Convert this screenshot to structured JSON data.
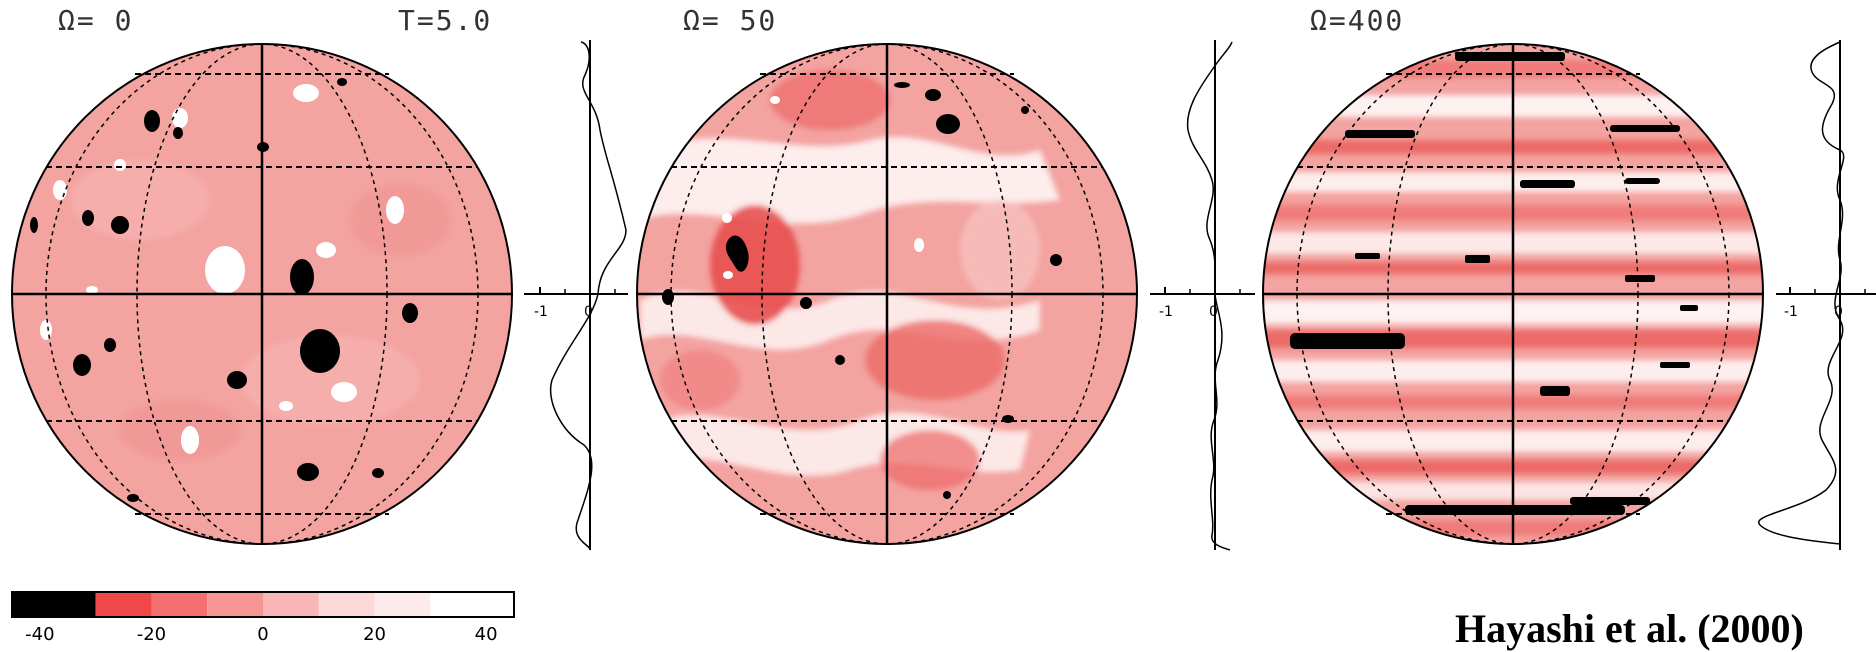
{
  "panels": [
    {
      "omega_label": "Ω=  0",
      "time_label": "T=5.0",
      "profile_min": "-1",
      "profile_zero": "0"
    },
    {
      "omega_label": "Ω= 50",
      "time_label": "",
      "profile_min": "-1",
      "profile_zero": "0"
    },
    {
      "omega_label": "Ω=400",
      "time_label": "",
      "profile_min": "-1",
      "profile_zero": "0"
    }
  ],
  "colorbar": {
    "ticks": [
      "-40",
      "-20",
      "0",
      "20",
      "40"
    ],
    "bands": [
      "#000000",
      "#f04848",
      "#f47070",
      "#f79494",
      "#fab6b6",
      "#fcd8d8",
      "#ffffff"
    ]
  },
  "colors": {
    "sphere_base": "#f3a3a0",
    "vortex_negative": "#000000",
    "vortex_positive": "#ffffff",
    "strong_red": "#e85050"
  },
  "citation": "Hayashi et al. (2000)"
}
